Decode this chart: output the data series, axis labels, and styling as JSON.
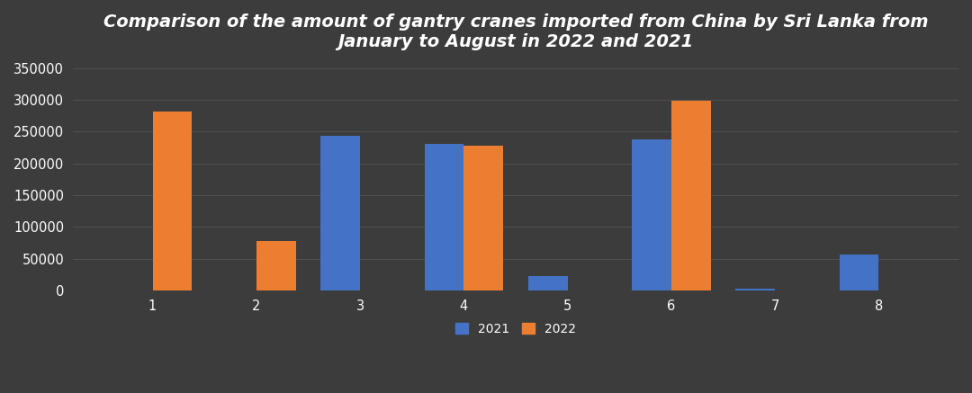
{
  "title": "Comparison of the amount of gantry cranes imported from China by Sri Lanka from\nJanuary to August in 2022 and 2021",
  "categories": [
    "1",
    "2",
    "3",
    "4",
    "5",
    "6",
    "7",
    "8"
  ],
  "values_2021": [
    0,
    0,
    243000,
    231000,
    22000,
    238000,
    3000,
    57000
  ],
  "values_2022": [
    282000,
    78000,
    0,
    228000,
    0,
    299000,
    0,
    0
  ],
  "color_2021": "#4472C4",
  "color_2022": "#ED7D31",
  "background_color": "#3C3C3C",
  "axes_background": "#3C3C3C",
  "text_color": "#FFFFFF",
  "grid_color": "#777777",
  "ylim": [
    0,
    360000
  ],
  "yticks": [
    0,
    50000,
    100000,
    150000,
    200000,
    250000,
    300000,
    350000
  ],
  "bar_width": 0.38,
  "title_fontsize": 14,
  "tick_fontsize": 10.5,
  "legend_fontsize": 10
}
